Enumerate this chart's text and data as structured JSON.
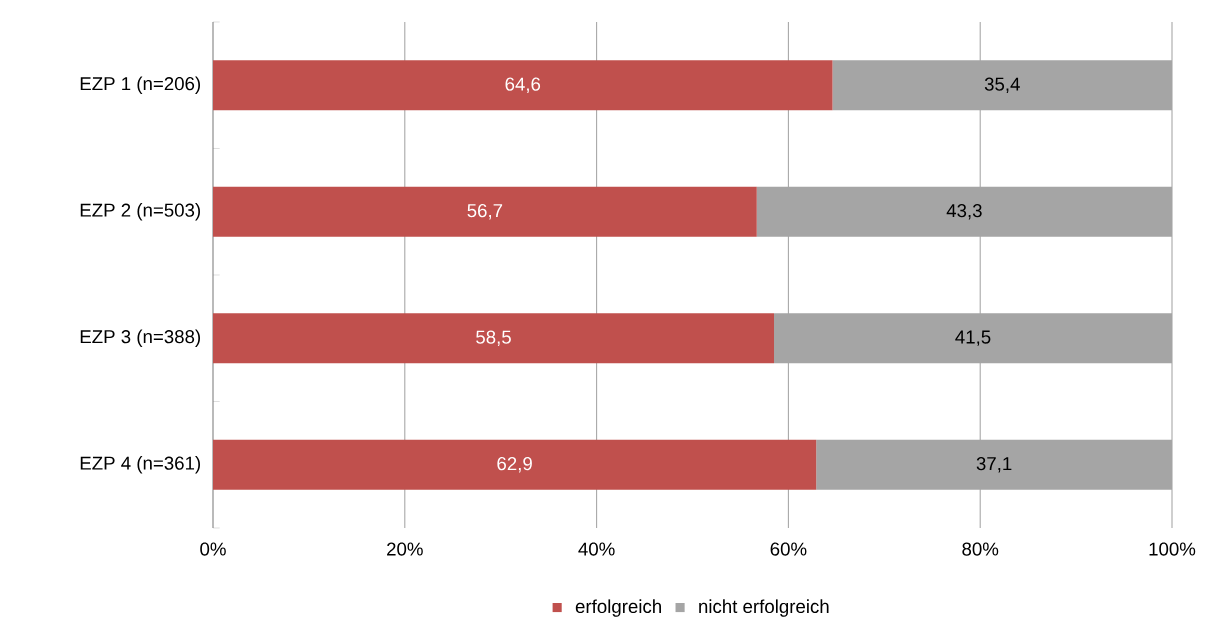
{
  "chart_data": {
    "type": "bar",
    "orientation": "horizontal",
    "stacked": true,
    "categories": [
      "EZP 1 (n=206)",
      "EZP 2 (n=503)",
      "EZP 3 (n=388)",
      "EZP 4 (n=361)"
    ],
    "series": [
      {
        "name": "erfolgreich",
        "color": "#c0504d",
        "values": [
          64.6,
          56.7,
          58.5,
          62.9
        ],
        "value_labels": [
          "64,6",
          "56,7",
          "58,5",
          "62,9"
        ]
      },
      {
        "name": "nicht erfolgreich",
        "color": "#a5a5a5",
        "values": [
          35.4,
          43.3,
          41.5,
          37.1
        ],
        "value_labels": [
          "35,4",
          "43,3",
          "41,5",
          "37,1"
        ]
      }
    ],
    "xlim": [
      0,
      100
    ],
    "xticks": [
      {
        "value": 0,
        "label": "0%"
      },
      {
        "value": 20,
        "label": "20%"
      },
      {
        "value": 40,
        "label": "40%"
      },
      {
        "value": 60,
        "label": "60%"
      },
      {
        "value": 80,
        "label": "80%"
      },
      {
        "value": 100,
        "label": "100%"
      }
    ],
    "grid": "x",
    "legend": "bottom"
  }
}
